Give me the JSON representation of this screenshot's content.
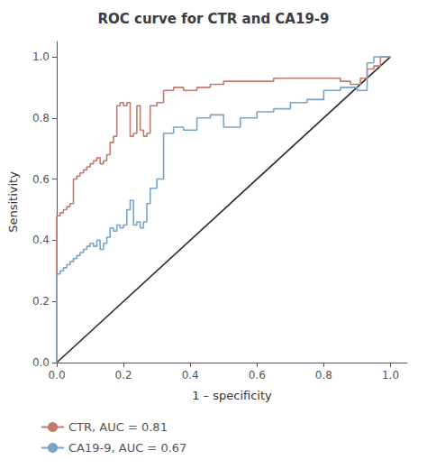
{
  "chart_data": {
    "type": "line",
    "title": "ROC curve for CTR and CA19-9",
    "xlabel": "1 – specificity",
    "ylabel": "Sensitivity",
    "xlim": [
      0.0,
      1.05
    ],
    "ylim": [
      0.0,
      1.05
    ],
    "xticks": [
      {
        "value": 0.0,
        "label": "0.0"
      },
      0.2,
      0.4,
      0.6,
      0.8,
      {
        "value": 1.0,
        "label": "1.0"
      }
    ],
    "yticks": [
      {
        "value": 0.0,
        "label": "0.0"
      },
      0.2,
      0.4,
      0.6,
      0.8,
      {
        "value": 1.0,
        "label": "1.0"
      }
    ],
    "grid": false,
    "legend": "bottom left",
    "series": [
      {
        "color": "#2a2a2a",
        "x": [
          0,
          1
        ],
        "values": [
          0,
          1
        ]
      },
      {
        "name": "CTR, AUC = 0.81",
        "color": "#c47b6b",
        "x": [
          0.0,
          0.0,
          0.01,
          0.01,
          0.02,
          0.02,
          0.03,
          0.03,
          0.04,
          0.04,
          0.05,
          0.05,
          0.06,
          0.06,
          0.07,
          0.07,
          0.08,
          0.08,
          0.09,
          0.09,
          0.1,
          0.1,
          0.11,
          0.11,
          0.12,
          0.12,
          0.13,
          0.13,
          0.14,
          0.14,
          0.15,
          0.15,
          0.16,
          0.16,
          0.17,
          0.17,
          0.18,
          0.18,
          0.19,
          0.19,
          0.2,
          0.2,
          0.21,
          0.21,
          0.22,
          0.22,
          0.23,
          0.23,
          0.24,
          0.24,
          0.25,
          0.25,
          0.26,
          0.26,
          0.27,
          0.27,
          0.28,
          0.28,
          0.3,
          0.3,
          0.32,
          0.32,
          0.35,
          0.35,
          0.38,
          0.38,
          0.42,
          0.42,
          0.46,
          0.46,
          0.5,
          0.5,
          0.55,
          0.55,
          0.6,
          0.6,
          0.65,
          0.65,
          0.7,
          0.7,
          0.75,
          0.75,
          0.8,
          0.8,
          0.85,
          0.85,
          0.88,
          0.88,
          0.91,
          0.91,
          0.93,
          0.93,
          0.95,
          0.95,
          0.97,
          0.97,
          1.0,
          1.0
        ],
        "values": [
          0.0,
          0.48,
          0.48,
          0.49,
          0.49,
          0.5,
          0.5,
          0.51,
          0.51,
          0.52,
          0.52,
          0.6,
          0.6,
          0.61,
          0.61,
          0.62,
          0.62,
          0.63,
          0.63,
          0.64,
          0.64,
          0.65,
          0.65,
          0.66,
          0.66,
          0.67,
          0.67,
          0.65,
          0.65,
          0.66,
          0.66,
          0.68,
          0.68,
          0.72,
          0.72,
          0.74,
          0.74,
          0.84,
          0.84,
          0.85,
          0.85,
          0.84,
          0.84,
          0.85,
          0.85,
          0.74,
          0.74,
          0.75,
          0.75,
          0.84,
          0.84,
          0.76,
          0.76,
          0.74,
          0.74,
          0.75,
          0.75,
          0.84,
          0.84,
          0.85,
          0.85,
          0.89,
          0.89,
          0.9,
          0.9,
          0.89,
          0.89,
          0.9,
          0.9,
          0.91,
          0.91,
          0.92,
          0.92,
          0.92,
          0.92,
          0.92,
          0.92,
          0.93,
          0.93,
          0.93,
          0.93,
          0.93,
          0.93,
          0.93,
          0.93,
          0.92,
          0.92,
          0.91,
          0.91,
          0.93,
          0.93,
          0.96,
          0.96,
          0.97,
          0.97,
          1.0,
          1.0,
          1.0
        ]
      },
      {
        "name": "CA19‑9, AUC = 0.67",
        "color": "#7ba3c8",
        "x": [
          0.0,
          0.0,
          0.01,
          0.01,
          0.02,
          0.02,
          0.03,
          0.03,
          0.04,
          0.04,
          0.05,
          0.05,
          0.06,
          0.06,
          0.07,
          0.07,
          0.08,
          0.08,
          0.09,
          0.09,
          0.1,
          0.1,
          0.11,
          0.11,
          0.12,
          0.12,
          0.13,
          0.13,
          0.14,
          0.14,
          0.15,
          0.15,
          0.16,
          0.16,
          0.17,
          0.17,
          0.18,
          0.18,
          0.19,
          0.19,
          0.2,
          0.2,
          0.21,
          0.21,
          0.22,
          0.22,
          0.23,
          0.23,
          0.24,
          0.24,
          0.25,
          0.25,
          0.26,
          0.26,
          0.27,
          0.27,
          0.28,
          0.28,
          0.3,
          0.3,
          0.32,
          0.32,
          0.35,
          0.35,
          0.38,
          0.38,
          0.42,
          0.42,
          0.46,
          0.46,
          0.5,
          0.5,
          0.55,
          0.55,
          0.6,
          0.6,
          0.65,
          0.65,
          0.7,
          0.7,
          0.75,
          0.75,
          0.8,
          0.8,
          0.85,
          0.85,
          0.9,
          0.9,
          0.93,
          0.93,
          0.95,
          0.95,
          1.0,
          1.0
        ],
        "values": [
          0.0,
          0.29,
          0.29,
          0.3,
          0.3,
          0.31,
          0.31,
          0.32,
          0.32,
          0.33,
          0.33,
          0.34,
          0.34,
          0.35,
          0.35,
          0.36,
          0.36,
          0.37,
          0.37,
          0.38,
          0.38,
          0.39,
          0.39,
          0.38,
          0.38,
          0.4,
          0.4,
          0.37,
          0.37,
          0.39,
          0.39,
          0.41,
          0.41,
          0.44,
          0.44,
          0.43,
          0.43,
          0.45,
          0.45,
          0.44,
          0.44,
          0.45,
          0.45,
          0.5,
          0.5,
          0.53,
          0.53,
          0.45,
          0.45,
          0.46,
          0.46,
          0.44,
          0.44,
          0.46,
          0.46,
          0.52,
          0.52,
          0.57,
          0.57,
          0.6,
          0.6,
          0.75,
          0.75,
          0.77,
          0.77,
          0.76,
          0.76,
          0.8,
          0.8,
          0.81,
          0.81,
          0.77,
          0.77,
          0.8,
          0.8,
          0.82,
          0.82,
          0.83,
          0.83,
          0.85,
          0.85,
          0.86,
          0.86,
          0.89,
          0.89,
          0.9,
          0.9,
          0.89,
          0.89,
          0.98,
          0.98,
          1.0,
          1.0,
          1.0
        ]
      }
    ]
  }
}
